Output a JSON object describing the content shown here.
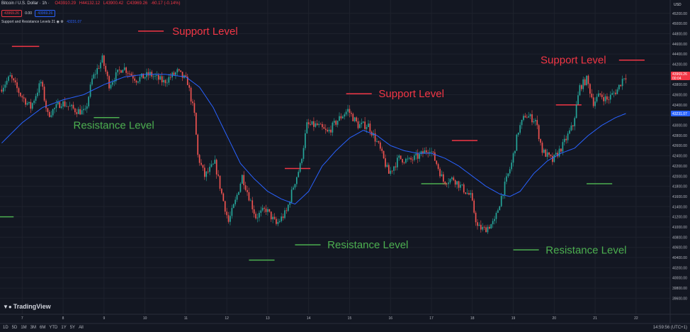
{
  "header": {
    "symbol": "Bitcoin / U.S. Dollar · 1h ·",
    "open": "O43910.29",
    "high": "H44132.12",
    "low": "L43900.42",
    "close": "C43969.26",
    "change": "-60.17 (-0.14%)",
    "sell_price": "43969.26",
    "spread": "0.00",
    "buy_price": "43969.26",
    "indicator_name": "Support and Resistance Levels",
    "indicator_params": "21",
    "indicator_value": "43231.07",
    "currency": "USD"
  },
  "logo": "TradingView",
  "timeframes": [
    "1D",
    "5D",
    "1M",
    "3M",
    "6M",
    "YTD",
    "1Y",
    "5Y",
    "All"
  ],
  "clock": "14:59:56 (UTC+1)",
  "colors": {
    "background": "#131722",
    "up": "#26a69a",
    "down": "#ef5350",
    "ma": "#2962ff",
    "support": "#f23645",
    "resistance": "#4caf50"
  },
  "chart_data": {
    "type": "candlestick",
    "y_ticks": [
      39600,
      39800,
      40000,
      40200,
      40400,
      40600,
      40800,
      41000,
      41200,
      41400,
      41600,
      41800,
      42000,
      42200,
      42400,
      42600,
      42800,
      43000,
      43200,
      43400,
      43600,
      43800,
      44000,
      44200,
      44400,
      44600,
      44800,
      45000,
      45200
    ],
    "y_tick_labels": [
      "39600.00",
      "39800.00",
      "40000.00",
      "40200.00",
      "40400.00",
      "40600.00",
      "40800.00",
      "41000.00",
      "41200.00",
      "41400.00",
      "41600.00",
      "41800.00",
      "42000.00",
      "42200.00",
      "42400.00",
      "42600.00",
      "42800.00",
      "43000.00",
      "43200.00",
      "43400.00",
      "43600.00",
      "43800.00",
      "44000.00",
      "44200.00",
      "44400.00",
      "44600.00",
      "44800.00",
      "45000.00",
      "45200.00"
    ],
    "ylim": [
      39550,
      45350
    ],
    "x_ticks": [
      {
        "label": "7",
        "idx": 12
      },
      {
        "label": "8",
        "idx": 36
      },
      {
        "label": "9",
        "idx": 60
      },
      {
        "label": "10",
        "idx": 84
      },
      {
        "label": "11",
        "idx": 108
      },
      {
        "label": "12",
        "idx": 132
      },
      {
        "label": "13",
        "idx": 156
      },
      {
        "label": "14",
        "idx": 180
      },
      {
        "label": "15",
        "idx": 204
      },
      {
        "label": "16",
        "idx": 228
      },
      {
        "label": "17",
        "idx": 252
      },
      {
        "label": "18",
        "idx": 276
      },
      {
        "label": "19",
        "idx": 300
      },
      {
        "label": "20",
        "idx": 324
      },
      {
        "label": "21",
        "idx": 348
      },
      {
        "label": "22",
        "idx": 372
      }
    ],
    "xlim": [
      -1,
      392
    ],
    "anchors": [
      [
        0,
        43700
      ],
      [
        6,
        43950
      ],
      [
        12,
        43600
      ],
      [
        18,
        43350
      ],
      [
        24,
        43850
      ],
      [
        28,
        43200
      ],
      [
        36,
        43450
      ],
      [
        44,
        43300
      ],
      [
        50,
        43250
      ],
      [
        54,
        43900
      ],
      [
        60,
        44300
      ],
      [
        64,
        43800
      ],
      [
        72,
        44150
      ],
      [
        80,
        43900
      ],
      [
        88,
        44000
      ],
      [
        96,
        43850
      ],
      [
        104,
        44050
      ],
      [
        110,
        43850
      ],
      [
        114,
        43200
      ],
      [
        116,
        42400
      ],
      [
        120,
        42000
      ],
      [
        126,
        42250
      ],
      [
        130,
        41650
      ],
      [
        134,
        41100
      ],
      [
        138,
        41500
      ],
      [
        142,
        42000
      ],
      [
        146,
        41600
      ],
      [
        150,
        41200
      ],
      [
        156,
        41350
      ],
      [
        162,
        41050
      ],
      [
        168,
        41300
      ],
      [
        172,
        41800
      ],
      [
        176,
        42200
      ],
      [
        180,
        43000
      ],
      [
        186,
        43000
      ],
      [
        192,
        42850
      ],
      [
        198,
        43100
      ],
      [
        204,
        43300
      ],
      [
        210,
        43000
      ],
      [
        216,
        43000
      ],
      [
        222,
        42600
      ],
      [
        228,
        42050
      ],
      [
        234,
        42350
      ],
      [
        240,
        42300
      ],
      [
        246,
        42400
      ],
      [
        252,
        42550
      ],
      [
        256,
        42250
      ],
      [
        260,
        41900
      ],
      [
        266,
        41950
      ],
      [
        270,
        41800
      ],
      [
        276,
        41600
      ],
      [
        280,
        41000
      ],
      [
        284,
        40950
      ],
      [
        290,
        41100
      ],
      [
        294,
        41600
      ],
      [
        300,
        42250
      ],
      [
        304,
        42900
      ],
      [
        308,
        43200
      ],
      [
        314,
        43100
      ],
      [
        318,
        42500
      ],
      [
        324,
        42300
      ],
      [
        330,
        42600
      ],
      [
        336,
        43000
      ],
      [
        340,
        43750
      ],
      [
        344,
        43900
      ],
      [
        348,
        43450
      ],
      [
        352,
        43600
      ],
      [
        356,
        43500
      ],
      [
        362,
        43700
      ],
      [
        366,
        43969
      ]
    ],
    "ma_anchors": [
      [
        0,
        42650
      ],
      [
        12,
        43050
      ],
      [
        24,
        43350
      ],
      [
        36,
        43500
      ],
      [
        48,
        43600
      ],
      [
        60,
        43800
      ],
      [
        72,
        43950
      ],
      [
        84,
        44000
      ],
      [
        96,
        44000
      ],
      [
        108,
        43950
      ],
      [
        116,
        43750
      ],
      [
        124,
        43350
      ],
      [
        132,
        42800
      ],
      [
        140,
        42250
      ],
      [
        148,
        41950
      ],
      [
        156,
        41700
      ],
      [
        164,
        41550
      ],
      [
        172,
        41450
      ],
      [
        180,
        41700
      ],
      [
        188,
        42200
      ],
      [
        196,
        42500
      ],
      [
        204,
        42750
      ],
      [
        212,
        42900
      ],
      [
        220,
        42800
      ],
      [
        228,
        42600
      ],
      [
        236,
        42500
      ],
      [
        244,
        42450
      ],
      [
        252,
        42450
      ],
      [
        260,
        42350
      ],
      [
        268,
        42200
      ],
      [
        276,
        42000
      ],
      [
        284,
        41800
      ],
      [
        292,
        41650
      ],
      [
        298,
        41600
      ],
      [
        304,
        41700
      ],
      [
        312,
        42050
      ],
      [
        320,
        42300
      ],
      [
        328,
        42450
      ],
      [
        336,
        42550
      ],
      [
        344,
        42800
      ],
      [
        352,
        43000
      ],
      [
        360,
        43150
      ],
      [
        366,
        43231
      ]
    ],
    "levels": [
      {
        "type": "support",
        "price": 44550,
        "x0": 6,
        "x1": 22
      },
      {
        "type": "support",
        "price": 44850,
        "x0": 80,
        "x1": 95
      },
      {
        "type": "support",
        "price": 43620,
        "x0": 202,
        "x1": 217
      },
      {
        "type": "support",
        "price": 42150,
        "x0": 166,
        "x1": 181
      },
      {
        "type": "support",
        "price": 42700,
        "x0": 264,
        "x1": 279
      },
      {
        "type": "support",
        "price": 43400,
        "x0": 325,
        "x1": 340
      },
      {
        "type": "support",
        "price": 44280,
        "x0": 362,
        "x1": 377
      },
      {
        "type": "resistance",
        "price": 43150,
        "x0": 54,
        "x1": 69
      },
      {
        "type": "resistance",
        "price": 41200,
        "x0": -1,
        "x1": 7
      },
      {
        "type": "resistance",
        "price": 40350,
        "x0": 145,
        "x1": 160
      },
      {
        "type": "resistance",
        "price": 40650,
        "x0": 172,
        "x1": 187
      },
      {
        "type": "resistance",
        "price": 41850,
        "x0": 246,
        "x1": 261
      },
      {
        "type": "resistance",
        "price": 40550,
        "x0": 300,
        "x1": 315
      },
      {
        "type": "resistance",
        "price": 41850,
        "x0": 343,
        "x1": 358
      }
    ],
    "annotations": [
      {
        "text": "Support Level",
        "type": "support",
        "line_x0": 80,
        "line_x1": 95,
        "text_idx": 100,
        "price": 44850
      },
      {
        "text": "Support Level",
        "type": "support",
        "line_x0": 202,
        "line_x1": 217,
        "text_idx": 221,
        "price": 43620
      },
      {
        "text": "Support Level",
        "type": "support",
        "line_x0": 362,
        "line_x1": 377,
        "text_idx": 316,
        "price": 44280
      },
      {
        "text": "Resistance Level",
        "type": "resistance",
        "line_x0": 54,
        "line_x1": 69,
        "text_idx": 42,
        "price": 43000
      },
      {
        "text": "Resistance Level",
        "type": "resistance",
        "line_x0": 172,
        "line_x1": 187,
        "text_idx": 191,
        "price": 40650
      },
      {
        "text": "Resistance Level",
        "type": "resistance",
        "line_x0": 300,
        "line_x1": 315,
        "text_idx": 319,
        "price": 40550
      }
    ],
    "last_price_label": "43969.26",
    "last_price_sub": "00:04",
    "ma_price_label": "43231.07"
  }
}
